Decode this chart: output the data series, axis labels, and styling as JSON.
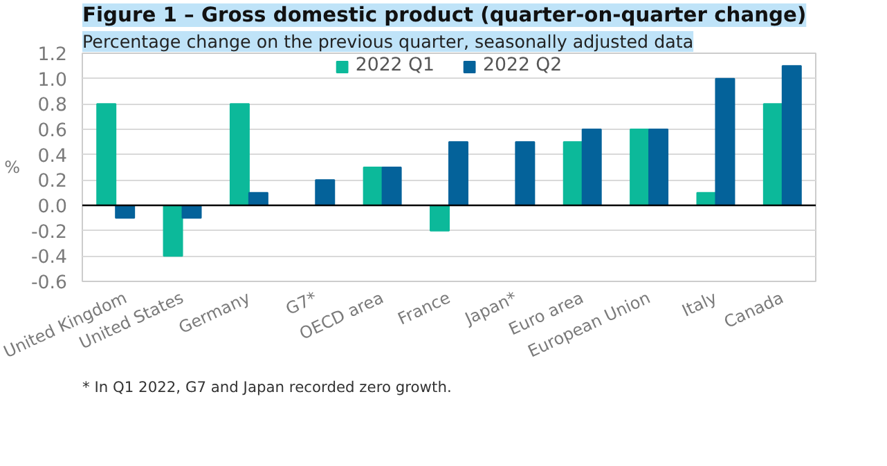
{
  "chart_data": {
    "type": "bar",
    "title": "Figure 1 – Gross domestic product (quarter-on-quarter change)",
    "subtitle": "Percentage change on the previous quarter, seasonally adjusted data",
    "ylabel": "%",
    "categories": [
      "United Kingdom",
      "United States",
      "Germany",
      "G7*",
      "OECD area",
      "France",
      "Japan*",
      "Euro area",
      "European Union",
      "Italy",
      "Canada"
    ],
    "series": [
      {
        "name": "2022 Q1",
        "color": "#0cb99a",
        "values": [
          0.8,
          -0.4,
          0.8,
          0,
          0.3,
          -0.2,
          0,
          0.5,
          0.6,
          0.1,
          0.8
        ]
      },
      {
        "name": "2022 Q2",
        "color": "#04629a",
        "values": [
          -0.1,
          -0.1,
          0.1,
          0.2,
          0.3,
          0.5,
          0.5,
          0.6,
          0.6,
          1.0,
          1.1
        ]
      }
    ],
    "ylim": [
      -0.6,
      1.2
    ],
    "yticks": [
      {
        "value": -0.6,
        "label": "-0.6"
      },
      {
        "value": -0.4,
        "label": "-0.4"
      },
      {
        "value": -0.2,
        "label": "-0.2"
      },
      {
        "value": 0,
        "label": "0.0"
      },
      {
        "value": 0.2,
        "label": "0.2"
      },
      {
        "value": 0.4,
        "label": "0.4"
      },
      {
        "value": 0.6,
        "label": "0.6"
      },
      {
        "value": 0.8,
        "label": "0.8"
      },
      {
        "value": 1.0,
        "label": "1.0"
      },
      {
        "value": 1.2,
        "label": "1.2"
      }
    ],
    "grid": "y",
    "legend": "top",
    "annotations": [
      "* In Q1 2022, G7 and Japan recorded zero growth."
    ]
  }
}
